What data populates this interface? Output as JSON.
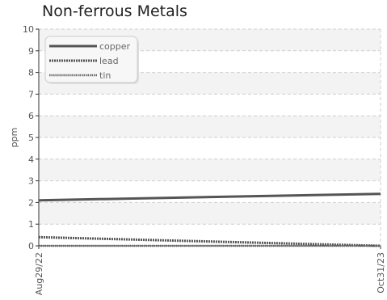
{
  "chart_data": {
    "type": "line",
    "title": "Non-ferrous Metals",
    "ylabel": "ppm",
    "xlabel": "",
    "x_tick_labels": [
      "Aug29/22",
      "Oct31/23"
    ],
    "ylim": [
      0,
      10
    ],
    "y_ticks": [
      0,
      1,
      2,
      3,
      4,
      5,
      6,
      7,
      8,
      9,
      10
    ],
    "grid": true,
    "legend_position": "top-left",
    "x": [
      "Aug29/22",
      "Oct31/23"
    ],
    "series": [
      {
        "name": "copper",
        "style": "solid",
        "color": "#555555",
        "values": [
          2.1,
          2.4
        ]
      },
      {
        "name": "lead",
        "style": "dotted",
        "color": "#555555",
        "values": [
          0.4,
          0.0
        ]
      },
      {
        "name": "tin",
        "style": "dotted-fine",
        "color": "#666666",
        "values": [
          0.0,
          0.0
        ]
      }
    ]
  }
}
